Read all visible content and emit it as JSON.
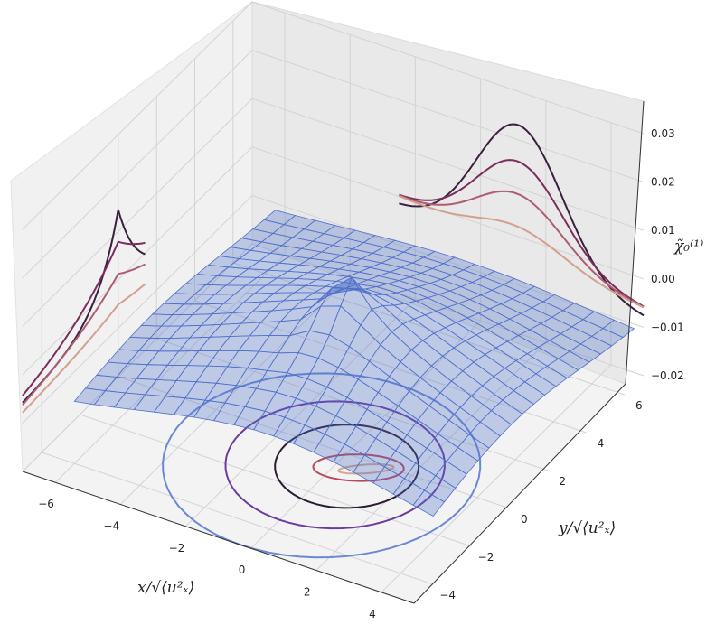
{
  "chart_data": {
    "type": "surface3d",
    "xlabel": "x/√⟨u²ₓ⟩",
    "ylabel": "y/√⟨u²ₓ⟩",
    "zlabel": "χ̃₀⁽¹⁾",
    "x_ticks": [
      "−6",
      "−4",
      "−2",
      "0",
      "2",
      "4"
    ],
    "y_ticks": [
      "−4",
      "−2",
      "0",
      "2",
      "4",
      "6"
    ],
    "z_ticks": [
      "−0.02",
      "−0.01",
      "0.00",
      "0.01",
      "0.02",
      "0.03"
    ],
    "xlim": [
      -7,
      5
    ],
    "ylim": [
      -5,
      7
    ],
    "zlim": [
      -0.02,
      0.03
    ],
    "grid": true,
    "surface": {
      "color": "#4f6fc9",
      "peak_x": 0,
      "peak_y": 0,
      "peak_z": 0.006,
      "edge_z": -0.01
    },
    "contour_levels": [
      {
        "name": "level-1",
        "color": "#6a88d6"
      },
      {
        "name": "level-2",
        "color": "#6c3aa0"
      },
      {
        "name": "level-3",
        "color": "#2b1c33"
      },
      {
        "name": "level-4",
        "color": "#b84a5e"
      },
      {
        "name": "level-5",
        "color": "#d9a68a"
      }
    ],
    "projection_colors": [
      "#3b1f3f",
      "#7a2d5c",
      "#ad5c72",
      "#d2a08d"
    ]
  }
}
